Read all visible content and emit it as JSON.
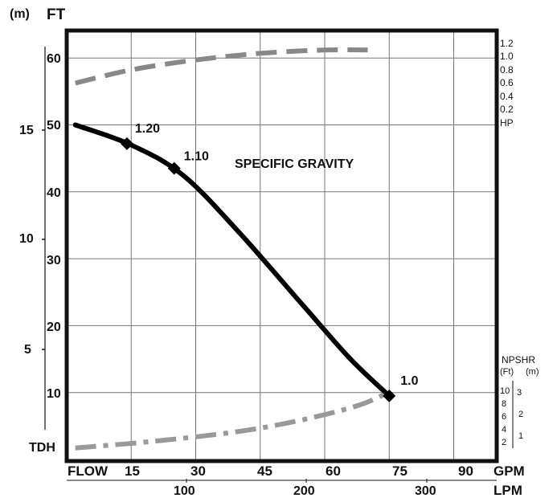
{
  "chart_data": {
    "type": "line",
    "units": {
      "left_top_m": "(m)",
      "left_top_ft": "FT",
      "bottom_gpm": "GPM",
      "bottom_lpm": "LPM",
      "flow_label": "FLOW",
      "tdh_label": "TDH",
      "hp_label": "HP",
      "npshr_label": "NPSHR",
      "npshr_ft": "(Ft)",
      "npshr_m": "(m)"
    },
    "x_gpm_ticks": [
      "15",
      "30",
      "45",
      "60",
      "75",
      "90"
    ],
    "x_lpm_ticks": [
      "100",
      "200",
      "300"
    ],
    "y_ft_ticks": [
      "10",
      "20",
      "30",
      "40",
      "50",
      "60"
    ],
    "y_m_ticks": [
      "5",
      "10",
      "15"
    ],
    "hp_ticks": [
      "1.2",
      "1.0",
      "0.8",
      "0.6",
      "0.4",
      "0.2"
    ],
    "npshr_ft_ticks": [
      "10",
      "8",
      "6",
      "4",
      "2"
    ],
    "npshr_m_ticks": [
      "3",
      "2",
      "1"
    ],
    "xlim_gpm": [
      0,
      100
    ],
    "ylim_ft": [
      0,
      70
    ],
    "annotation_text": "SPECIFIC GRAVITY",
    "series": [
      {
        "role": "tdh",
        "style": "solid",
        "x": [
          2,
          15,
          27,
          40,
          55,
          66,
          75
        ],
        "y": [
          50,
          47,
          42.5,
          34,
          23,
          15,
          9.5
        ]
      },
      {
        "role": "hp",
        "style": "dashed",
        "x": [
          2,
          15,
          30,
          45,
          60,
          70
        ],
        "hp": [
          0.6,
          0.8,
          0.95,
          1.05,
          1.1,
          1.1
        ]
      },
      {
        "role": "npshr",
        "style": "dash-dot",
        "x": [
          2,
          20,
          40,
          55,
          68,
          75
        ],
        "npshr_ft": [
          1.5,
          2.5,
          4.0,
          5.8,
          8.0,
          10.0
        ]
      }
    ],
    "markers": [
      {
        "label": "1.20",
        "x": 14,
        "y": 47.2
      },
      {
        "label": "1.10",
        "x": 25,
        "y": 43.5
      },
      {
        "label": "1.0",
        "x": 75,
        "y": 9.5
      }
    ]
  }
}
